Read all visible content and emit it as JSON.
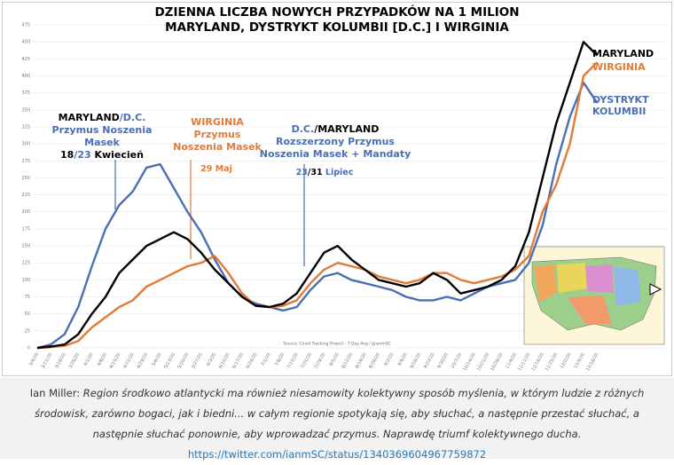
{
  "chart_data": {
    "type": "line",
    "title": [
      "DZIENNA LICZBA NOWYCH PRZYPADKÓW NA 1 MILION",
      "MARYLAND, DYSTRYKT KOLUMBII [D.C.] I WIRGINIA"
    ],
    "source": "Source: Covid Tracking Project - 7 Day Avg / @ianmSC",
    "categories": [
      "3/4/20",
      "3/11/20",
      "3/18/20",
      "3/25/20",
      "4/1/20",
      "4/8/20",
      "4/15/20",
      "4/22/20",
      "4/29/20",
      "5/6/20",
      "5/13/20",
      "5/20/20",
      "5/27/20",
      "6/3/20",
      "6/10/20",
      "6/17/20",
      "6/24/20",
      "7/1/20",
      "7/8/20",
      "7/15/20",
      "7/22/20",
      "7/29/20",
      "8/5/20",
      "8/12/20",
      "8/19/20",
      "8/26/20",
      "9/2/20",
      "9/9/20",
      "9/16/20",
      "9/23/20",
      "9/30/20",
      "10/7/20",
      "10/14/20",
      "10/21/20",
      "10/28/20",
      "11/4/20",
      "11/11/20",
      "11/18/20",
      "11/25/20",
      "12/2/20",
      "12/9/20",
      "12/16/20"
    ],
    "series": [
      {
        "name": "DYSTRYKT KOLUMBII",
        "color": "#4a6fb5",
        "values": [
          0,
          5,
          20,
          60,
          120,
          175,
          210,
          230,
          265,
          270,
          235,
          200,
          170,
          130,
          95,
          75,
          65,
          60,
          55,
          60,
          85,
          105,
          110,
          100,
          95,
          90,
          85,
          75,
          70,
          70,
          75,
          70,
          80,
          90,
          95,
          100,
          125,
          180,
          270,
          340,
          390,
          360
        ]
      },
      {
        "name": "WIRGINIA",
        "color": "#e07b39",
        "values": [
          0,
          1,
          3,
          10,
          30,
          45,
          60,
          70,
          90,
          100,
          110,
          120,
          125,
          135,
          110,
          80,
          62,
          60,
          62,
          70,
          95,
          115,
          125,
          120,
          115,
          105,
          100,
          95,
          100,
          110,
          110,
          100,
          95,
          100,
          105,
          115,
          135,
          200,
          240,
          300,
          400,
          420
        ]
      },
      {
        "name": "MARYLAND",
        "color": "#000000",
        "values": [
          0,
          2,
          5,
          20,
          50,
          75,
          110,
          130,
          150,
          160,
          170,
          160,
          140,
          115,
          95,
          75,
          62,
          60,
          65,
          80,
          110,
          140,
          150,
          130,
          115,
          100,
          95,
          90,
          95,
          110,
          100,
          80,
          85,
          90,
          100,
          120,
          170,
          250,
          330,
          390,
          450,
          430
        ]
      }
    ],
    "ylim": [
      0,
      475
    ],
    "yticks": [
      0,
      25,
      50,
      75,
      100,
      125,
      150,
      175,
      200,
      225,
      250,
      275,
      300,
      325,
      350,
      375,
      400,
      425,
      450,
      475
    ],
    "grid": true,
    "annotations": [
      [
        [
          {
            "text": "MARYLAND",
            "color": "#000000"
          },
          {
            "text": "/D.C.",
            "color": "#4a6fb5"
          }
        ],
        [
          {
            "text": "Przymus Noszenia",
            "color": "#4a6fb5"
          }
        ],
        [
          {
            "text": "Masek",
            "color": "#4a6fb5"
          }
        ],
        [
          {
            "text": "18",
            "color": "#000000"
          },
          {
            "text": "/23",
            "color": "#4a6fb5"
          },
          {
            "text": " Kwiecień",
            "color": "#000000"
          }
        ]
      ],
      [
        [
          {
            "text": "WIRGINIA",
            "color": "#e07b39"
          }
        ],
        [
          {
            "text": "Przymus",
            "color": "#e07b39"
          }
        ],
        [
          {
            "text": "Noszenia Masek",
            "color": "#e07b39"
          }
        ]
      ],
      [
        [
          {
            "text": "29 Maj",
            "color": "#e07b39"
          }
        ]
      ],
      [
        [
          {
            "text": "D.C.",
            "color": "#4a6fb5"
          },
          {
            "text": "/MARYLAND",
            "color": "#000000"
          }
        ],
        [
          {
            "text": "Rozszerzony Przymus",
            "color": "#4a6fb5"
          }
        ],
        [
          {
            "text": "Noszenia Masek + Mandaty",
            "color": "#4a6fb5"
          }
        ]
      ],
      [
        [
          {
            "text": "23",
            "color": "#4a6fb5"
          },
          {
            "text": "/31",
            "color": "#000000"
          },
          {
            "text": " Lipiec",
            "color": "#4a6fb5"
          }
        ]
      ]
    ]
  },
  "caption": {
    "author": "Ian Miller:",
    "text": "Region środkowo atlantycki ma również niesamowity kolektywny sposób myślenia, w którym ludzie z różnych środowisk, zarówno bogaci, jak i biedni... w całym regionie spotykają się, aby słuchać, a następnie przestać słuchać, a następnie słuchać ponownie, aby wprowadzać przymus. Naprawdę triumf kolektywnego ducha.",
    "link": "https://twitter.com/ianmSC/status/1340369604967759872"
  }
}
